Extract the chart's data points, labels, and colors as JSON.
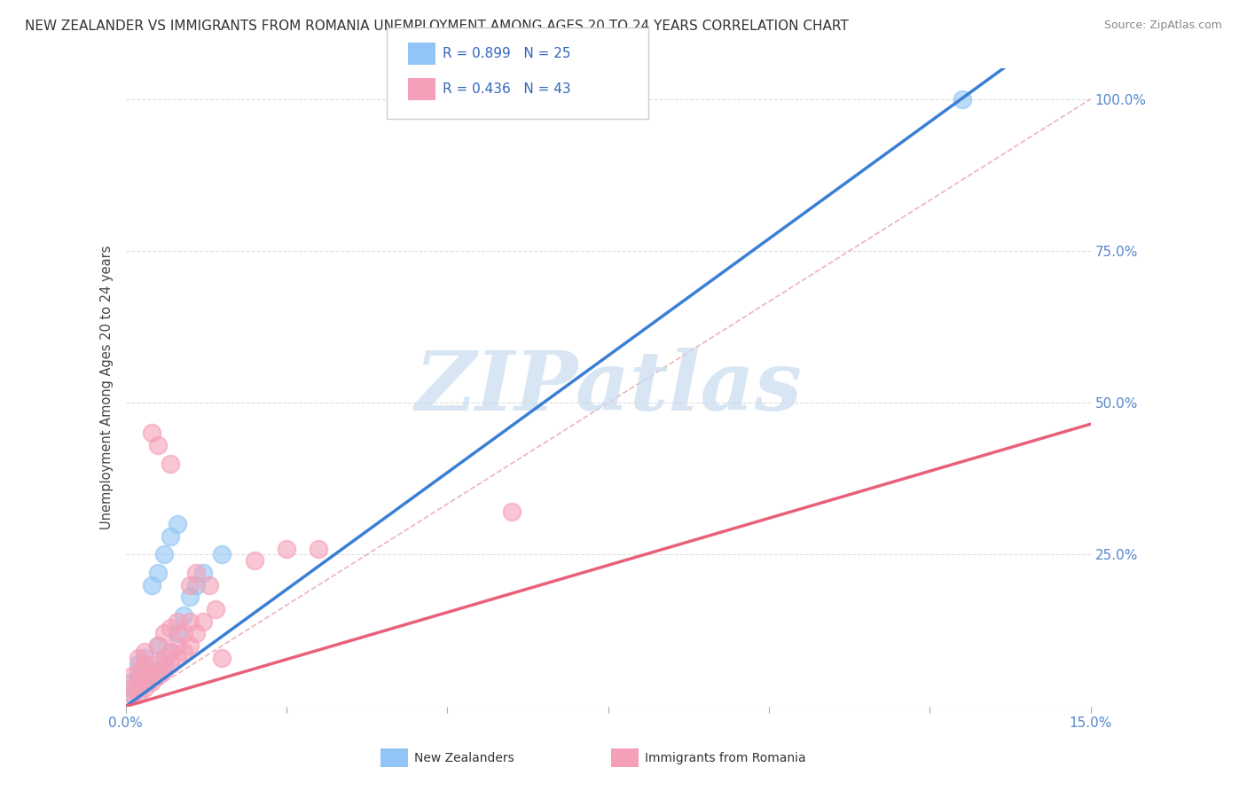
{
  "title": "NEW ZEALANDER VS IMMIGRANTS FROM ROMANIA UNEMPLOYMENT AMONG AGES 20 TO 24 YEARS CORRELATION CHART",
  "source": "Source: ZipAtlas.com",
  "ylabel": "Unemployment Among Ages 20 to 24 years",
  "xlim": [
    0.0,
    0.15
  ],
  "ylim": [
    0.0,
    1.05
  ],
  "xticks": [
    0.0,
    0.025,
    0.05,
    0.075,
    0.1,
    0.125,
    0.15
  ],
  "xticklabels": [
    "0.0%",
    "",
    "",
    "",
    "",
    "",
    "15.0%"
  ],
  "yticks": [
    0.0,
    0.25,
    0.5,
    0.75,
    1.0
  ],
  "yticklabels": [
    "",
    "25.0%",
    "50.0%",
    "75.0%",
    "100.0%"
  ],
  "nz_R": 0.899,
  "nz_N": 25,
  "rom_R": 0.436,
  "rom_N": 43,
  "nz_color": "#92C5F5",
  "rom_color": "#F5A0B8",
  "nz_line_color": "#3A7FD4",
  "rom_line_color": "#E8607A",
  "ref_line_color": "#E8A0B0",
  "watermark": "ZIPatlas",
  "watermark_color": "#C8DCF0",
  "legend_label_nz": "New Zealanders",
  "legend_label_rom": "Immigrants from Romania",
  "nz_x": [
    0.001,
    0.001,
    0.002,
    0.002,
    0.002,
    0.003,
    0.003,
    0.003,
    0.004,
    0.004,
    0.005,
    0.005,
    0.005,
    0.006,
    0.006,
    0.007,
    0.007,
    0.008,
    0.008,
    0.009,
    0.01,
    0.011,
    0.012,
    0.015,
    0.13
  ],
  "nz_y": [
    0.02,
    0.04,
    0.03,
    0.05,
    0.07,
    0.04,
    0.06,
    0.08,
    0.05,
    0.2,
    0.06,
    0.1,
    0.22,
    0.07,
    0.25,
    0.09,
    0.28,
    0.12,
    0.3,
    0.15,
    0.18,
    0.2,
    0.22,
    0.25,
    1.0
  ],
  "rom_x": [
    0.001,
    0.001,
    0.001,
    0.002,
    0.002,
    0.002,
    0.002,
    0.003,
    0.003,
    0.003,
    0.003,
    0.004,
    0.004,
    0.004,
    0.005,
    0.005,
    0.005,
    0.005,
    0.006,
    0.006,
    0.006,
    0.007,
    0.007,
    0.007,
    0.007,
    0.008,
    0.008,
    0.008,
    0.009,
    0.009,
    0.01,
    0.01,
    0.01,
    0.011,
    0.011,
    0.012,
    0.013,
    0.014,
    0.015,
    0.02,
    0.025,
    0.03,
    0.06
  ],
  "rom_y": [
    0.02,
    0.03,
    0.05,
    0.02,
    0.04,
    0.06,
    0.08,
    0.03,
    0.05,
    0.07,
    0.09,
    0.04,
    0.06,
    0.45,
    0.05,
    0.07,
    0.1,
    0.43,
    0.06,
    0.08,
    0.12,
    0.07,
    0.09,
    0.13,
    0.4,
    0.08,
    0.1,
    0.14,
    0.09,
    0.12,
    0.1,
    0.14,
    0.2,
    0.12,
    0.22,
    0.14,
    0.2,
    0.16,
    0.08,
    0.24,
    0.26,
    0.26,
    0.32
  ]
}
